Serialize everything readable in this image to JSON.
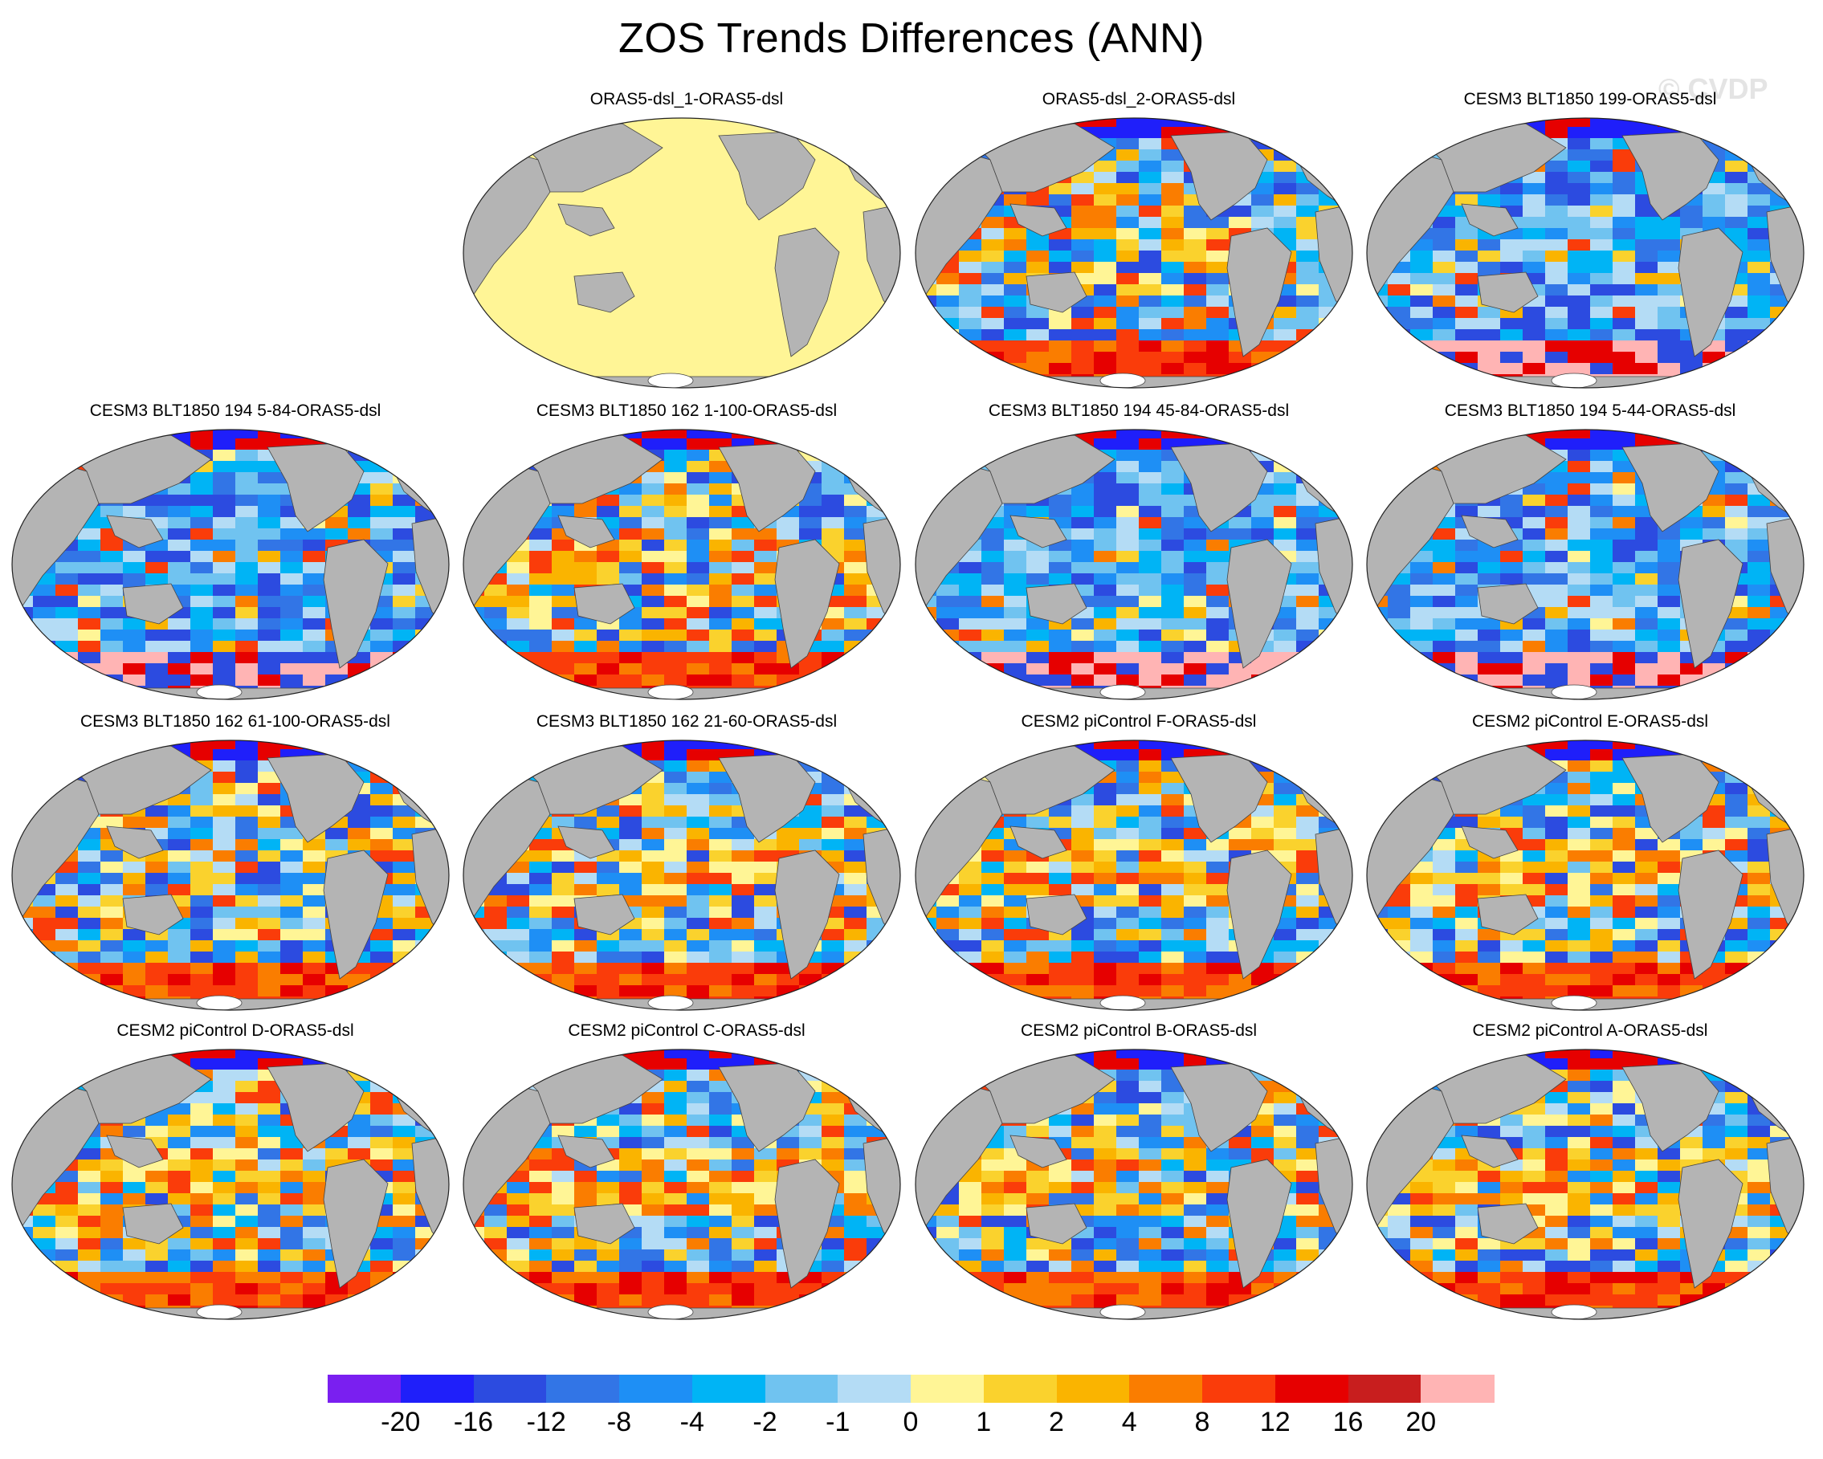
{
  "title": "ZOS Trends Differences (ANN)",
  "watermark": "© CVDP",
  "panels": [
    {
      "title": "ORAS5-dsl_1-ORAS5-dsl",
      "style": "uniform"
    },
    {
      "title": "ORAS5-dsl_2-ORAS5-dsl",
      "style": "mixed"
    },
    {
      "title": "CESM3 BLT1850 199-ORAS5-dsl",
      "style": "blue"
    },
    {
      "title": "CESM3 BLT1850 194 5-84-ORAS5-dsl",
      "style": "blue"
    },
    {
      "title": "CESM3 BLT1850 162 1-100-ORAS5-dsl",
      "style": "mixed"
    },
    {
      "title": "CESM3 BLT1850 194 45-84-ORAS5-dsl",
      "style": "blue"
    },
    {
      "title": "CESM3 BLT1850 194 5-44-ORAS5-dsl",
      "style": "blue"
    },
    {
      "title": "CESM3 BLT1850 162 61-100-ORAS5-dsl",
      "style": "mixed"
    },
    {
      "title": "CESM3 BLT1850 162 21-60-ORAS5-dsl",
      "style": "mixed"
    },
    {
      "title": "CESM2 piControl F-ORAS5-dsl",
      "style": "warm"
    },
    {
      "title": "CESM2 piControl E-ORAS5-dsl",
      "style": "warm"
    },
    {
      "title": "CESM2 piControl D-ORAS5-dsl",
      "style": "warm"
    },
    {
      "title": "CESM2 piControl C-ORAS5-dsl",
      "style": "warm"
    },
    {
      "title": "CESM2 piControl B-ORAS5-dsl",
      "style": "warm"
    },
    {
      "title": "CESM2 piControl A-ORAS5-dsl",
      "style": "warm"
    }
  ],
  "colorbar": {
    "colors": [
      "#7a1ff0",
      "#1f1ffa",
      "#2c4be0",
      "#3275e6",
      "#1e8ff5",
      "#00b4f5",
      "#70c3f0",
      "#b4dcf5",
      "#fff596",
      "#fad22d",
      "#fab400",
      "#fa7d00",
      "#fa3c0a",
      "#e60000",
      "#c81e1e",
      "#ffb4b4"
    ],
    "labels": [
      "-20",
      "-16",
      "-12",
      "-8",
      "-4",
      "-2",
      "-1",
      "0",
      "1",
      "2",
      "4",
      "8",
      "12",
      "16",
      "20"
    ]
  },
  "colors": {
    "land": "#b4b4b4",
    "uniform_ocean": "#fff596",
    "ice": "#ffffff"
  }
}
